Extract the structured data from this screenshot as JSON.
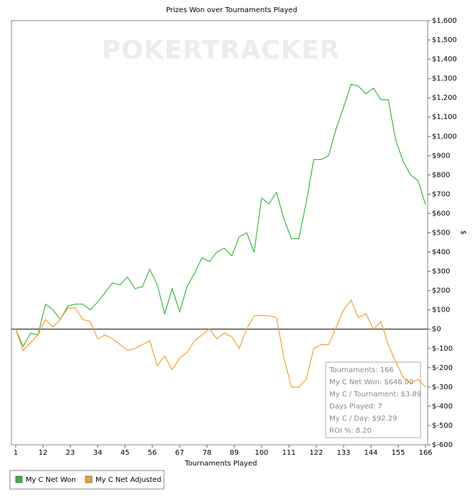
{
  "chart_data": {
    "type": "line",
    "title": "Prizes Won over Tournaments Played",
    "watermark": "POKERTRACKER",
    "x_label": "Tournaments Played",
    "y_label": "$",
    "x": [
      1,
      4,
      7,
      10,
      13,
      16,
      19,
      22,
      25,
      28,
      31,
      34,
      37,
      40,
      43,
      46,
      49,
      52,
      55,
      58,
      61,
      64,
      67,
      70,
      73,
      76,
      79,
      82,
      85,
      88,
      91,
      94,
      97,
      100,
      103,
      106,
      109,
      112,
      115,
      118,
      121,
      124,
      127,
      130,
      133,
      136,
      139,
      142,
      145,
      148,
      151,
      154,
      157,
      160,
      163,
      166
    ],
    "series": [
      {
        "name": "My C Net Won",
        "color": "#3cb83c",
        "values": [
          0,
          -90,
          -20,
          -30,
          130,
          100,
          50,
          120,
          130,
          130,
          100,
          140,
          190,
          240,
          230,
          270,
          210,
          220,
          310,
          230,
          80,
          210,
          90,
          220,
          290,
          370,
          350,
          400,
          420,
          380,
          480,
          500,
          400,
          680,
          650,
          710,
          570,
          470,
          470,
          660,
          880,
          880,
          900,
          1040,
          1150,
          1270,
          1260,
          1220,
          1250,
          1190,
          1190,
          980,
          870,
          800,
          770,
          646
        ]
      },
      {
        "name": "My C Net Adjusted",
        "color": "#f5a030",
        "values": [
          0,
          -110,
          -70,
          -30,
          50,
          10,
          50,
          110,
          110,
          50,
          40,
          -50,
          -30,
          -50,
          -80,
          -110,
          -100,
          -80,
          -60,
          -190,
          -140,
          -210,
          -150,
          -120,
          -60,
          -30,
          0,
          -50,
          -20,
          -40,
          -100,
          0,
          70,
          70,
          70,
          60,
          -150,
          -300,
          -300,
          -260,
          -100,
          -80,
          -80,
          10,
          100,
          150,
          60,
          80,
          0,
          40,
          -80,
          -170,
          -250,
          -280,
          -260,
          -300
        ]
      }
    ],
    "xlim": [
      1,
      166
    ],
    "xticks": [
      1,
      12,
      23,
      34,
      45,
      56,
      67,
      78,
      89,
      100,
      111,
      122,
      133,
      144,
      155,
      166
    ],
    "ylim": [
      -600,
      1600
    ],
    "yticks": [
      {
        "value": 1600,
        "label": "$1,600"
      },
      {
        "value": 1500,
        "label": "$1,500"
      },
      {
        "value": 1400,
        "label": "$1,400"
      },
      {
        "value": 1300,
        "label": "$1,300"
      },
      {
        "value": 1200,
        "label": "$1,200"
      },
      {
        "value": 1100,
        "label": "$1,100"
      },
      {
        "value": 1000,
        "label": "$1,000"
      },
      {
        "value": 900,
        "label": "$900"
      },
      {
        "value": 800,
        "label": "$800"
      },
      {
        "value": 700,
        "label": "$700"
      },
      {
        "value": 600,
        "label": "$600"
      },
      {
        "value": 500,
        "label": "$500"
      },
      {
        "value": 400,
        "label": "$400"
      },
      {
        "value": 300,
        "label": "$300"
      },
      {
        "value": 200,
        "label": "$200"
      },
      {
        "value": 100,
        "label": "$100"
      },
      {
        "value": 0,
        "label": "$0"
      },
      {
        "value": -100,
        "label": "$-100"
      },
      {
        "value": -200,
        "label": "$-200"
      },
      {
        "value": -300,
        "label": "$-300"
      },
      {
        "value": -400,
        "label": "$-400"
      },
      {
        "value": -500,
        "label": "$-500"
      },
      {
        "value": -600,
        "label": "$-600"
      }
    ],
    "tooltip": [
      "Tournaments: 166",
      "My C Net Won: $646.00",
      "My C / Tournament: $3.89",
      "Days Played: 7",
      "My C / Day: $92.29",
      "ROI %: 8.20"
    ]
  }
}
